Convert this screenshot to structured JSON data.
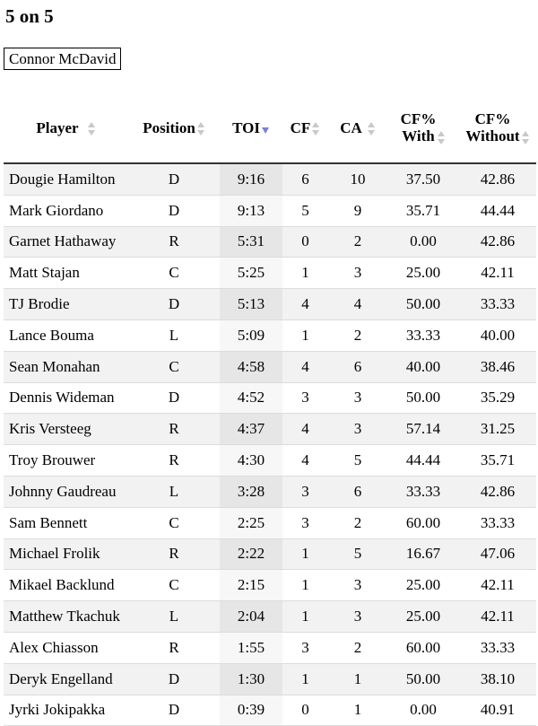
{
  "page": {
    "title": "5 on 5",
    "selected_player": "Connor McDavid"
  },
  "table": {
    "headers": {
      "player": "Player",
      "position": "Position",
      "toi": "TOI",
      "cf": "CF",
      "ca": "CA",
      "cf_with_1": "CF%",
      "cf_with_2": "With",
      "cf_without_1": "CF%",
      "cf_without_2": "Without"
    },
    "sorted_column": "TOI",
    "sort_direction": "descending",
    "colors": {
      "sort_active": "#7a80d8",
      "sort_inactive": "#c8c8c8",
      "odd_row": "#f2f2f2"
    },
    "rows": [
      {
        "player": "Dougie Hamilton",
        "position": "D",
        "toi": "9:16",
        "cf": "6",
        "ca": "10",
        "cf_with": "37.50",
        "cf_without": "42.86"
      },
      {
        "player": "Mark Giordano",
        "position": "D",
        "toi": "9:13",
        "cf": "5",
        "ca": "9",
        "cf_with": "35.71",
        "cf_without": "44.44"
      },
      {
        "player": "Garnet Hathaway",
        "position": "R",
        "toi": "5:31",
        "cf": "0",
        "ca": "2",
        "cf_with": "0.00",
        "cf_without": "42.86"
      },
      {
        "player": "Matt Stajan",
        "position": "C",
        "toi": "5:25",
        "cf": "1",
        "ca": "3",
        "cf_with": "25.00",
        "cf_without": "42.11"
      },
      {
        "player": "TJ Brodie",
        "position": "D",
        "toi": "5:13",
        "cf": "4",
        "ca": "4",
        "cf_with": "50.00",
        "cf_without": "33.33"
      },
      {
        "player": "Lance Bouma",
        "position": "L",
        "toi": "5:09",
        "cf": "1",
        "ca": "2",
        "cf_with": "33.33",
        "cf_without": "40.00"
      },
      {
        "player": "Sean Monahan",
        "position": "C",
        "toi": "4:58",
        "cf": "4",
        "ca": "6",
        "cf_with": "40.00",
        "cf_without": "38.46"
      },
      {
        "player": "Dennis Wideman",
        "position": "D",
        "toi": "4:52",
        "cf": "3",
        "ca": "3",
        "cf_with": "50.00",
        "cf_without": "35.29"
      },
      {
        "player": "Kris Versteeg",
        "position": "R",
        "toi": "4:37",
        "cf": "4",
        "ca": "3",
        "cf_with": "57.14",
        "cf_without": "31.25"
      },
      {
        "player": "Troy Brouwer",
        "position": "R",
        "toi": "4:30",
        "cf": "4",
        "ca": "5",
        "cf_with": "44.44",
        "cf_without": "35.71"
      },
      {
        "player": "Johnny Gaudreau",
        "position": "L",
        "toi": "3:28",
        "cf": "3",
        "ca": "6",
        "cf_with": "33.33",
        "cf_without": "42.86"
      },
      {
        "player": "Sam Bennett",
        "position": "C",
        "toi": "2:25",
        "cf": "3",
        "ca": "2",
        "cf_with": "60.00",
        "cf_without": "33.33"
      },
      {
        "player": "Michael Frolik",
        "position": "R",
        "toi": "2:22",
        "cf": "1",
        "ca": "5",
        "cf_with": "16.67",
        "cf_without": "47.06"
      },
      {
        "player": "Mikael Backlund",
        "position": "C",
        "toi": "2:15",
        "cf": "1",
        "ca": "3",
        "cf_with": "25.00",
        "cf_without": "42.11"
      },
      {
        "player": "Matthew Tkachuk",
        "position": "L",
        "toi": "2:04",
        "cf": "1",
        "ca": "3",
        "cf_with": "25.00",
        "cf_without": "42.11"
      },
      {
        "player": "Alex Chiasson",
        "position": "R",
        "toi": "1:55",
        "cf": "3",
        "ca": "2",
        "cf_with": "60.00",
        "cf_without": "33.33"
      },
      {
        "player": "Deryk Engelland",
        "position": "D",
        "toi": "1:30",
        "cf": "1",
        "ca": "1",
        "cf_with": "50.00",
        "cf_without": "38.10"
      },
      {
        "player": "Jyrki Jokipakka",
        "position": "D",
        "toi": "0:39",
        "cf": "0",
        "ca": "1",
        "cf_with": "0.00",
        "cf_without": "40.91"
      }
    ]
  }
}
